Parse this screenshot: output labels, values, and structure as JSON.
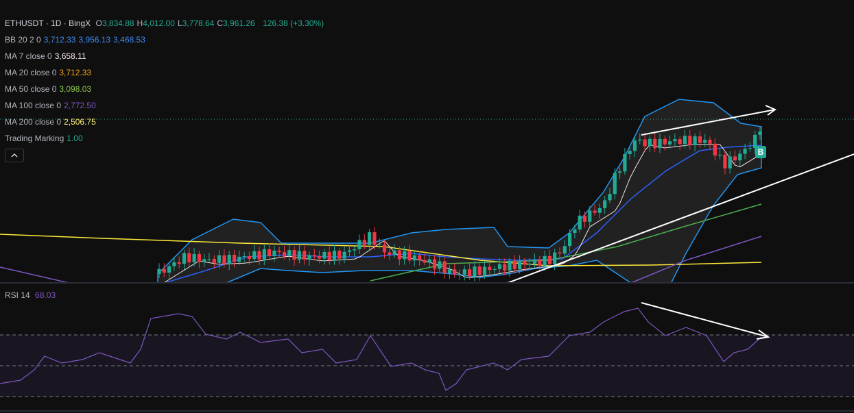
{
  "header": {
    "symbol": "ETHUSDT · 1D · BingX",
    "ohlc": [
      {
        "label": "O",
        "value": "3,834.88"
      },
      {
        "label": "H",
        "value": "4,012.00"
      },
      {
        "label": "L",
        "value": "3,778.64"
      },
      {
        "label": "C",
        "value": "3,961.26"
      }
    ],
    "change": "126.38 (+3.30%)",
    "value_color": "#22ab94"
  },
  "indicators": [
    {
      "name": "BB 20 2 0",
      "values": [
        "3,712.33",
        "3,956.13",
        "3,468.53"
      ],
      "color": "#3d8af7"
    },
    {
      "name": "MA 7 close 0",
      "values": [
        "3,658.11"
      ],
      "color": "#f5e6e6"
    },
    {
      "name": "MA 20 close 0",
      "values": [
        "3,712.33"
      ],
      "color": "#f7a21b"
    },
    {
      "name": "MA 50 close 0",
      "values": [
        "3,098.03"
      ],
      "color": "#8bc34a"
    },
    {
      "name": "MA 100 close 0",
      "values": [
        "2,772.50"
      ],
      "color": "#7e57c2"
    },
    {
      "name": "MA 200 close 0",
      "values": [
        "2,506.75"
      ],
      "color": "#fff176"
    },
    {
      "name": "Trading Marking",
      "values": [
        "1.00"
      ],
      "color": "#22ab94"
    }
  ],
  "marker": "B",
  "rsi": {
    "name": "RSI 14",
    "value": "68.03",
    "color": "#7e57c2"
  }
}
